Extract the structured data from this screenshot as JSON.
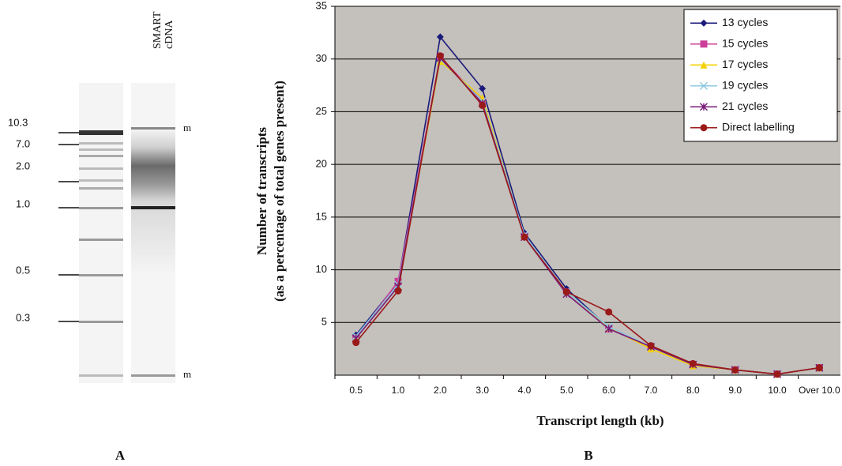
{
  "gel": {
    "lane_labels": [
      "SMART",
      "cDNA"
    ],
    "size_labels": [
      "10.3",
      "7.0",
      "2.0",
      "1.0",
      "0.5",
      "0.3"
    ],
    "marker_labels": [
      "m",
      "m"
    ]
  },
  "panel_labels": [
    "A",
    "B"
  ],
  "chart_data": {
    "type": "line",
    "xlabel": "Transcript length (kb)",
    "ylabel": [
      "Number of transcripts",
      "(as a percentage of total genes present)"
    ],
    "categories": [
      "0.5",
      "1.0",
      "2.0",
      "3.0",
      "4.0",
      "5.0",
      "6.0",
      "7.0",
      "8.0",
      "9.0",
      "10.0",
      "Over 10.0"
    ],
    "ylim": [
      0,
      35
    ],
    "yticks": [
      5,
      10,
      15,
      20,
      25,
      30,
      35
    ],
    "grid": true,
    "legend": "top-right",
    "series": [
      {
        "name": "13 cycles",
        "color": "#1a1a7a",
        "marker": "diamond",
        "values": [
          3.8,
          8.8,
          32.1,
          27.2,
          13.5,
          8.2,
          4.5,
          2.7,
          1.0,
          0.5,
          0.1,
          0.7
        ]
      },
      {
        "name": "15 cycles",
        "color": "#cc3f99",
        "marker": "square",
        "values": [
          3.5,
          8.9,
          30.2,
          26.0,
          13.2,
          7.9,
          4.4,
          2.7,
          1.0,
          0.5,
          0.1,
          0.7
        ]
      },
      {
        "name": "17 cycles",
        "color": "#f5d000",
        "marker": "triangle",
        "values": [
          3.6,
          8.5,
          29.8,
          26.3,
          13.2,
          7.9,
          4.5,
          2.5,
          0.9,
          0.5,
          0.1,
          0.7
        ]
      },
      {
        "name": "19 cycles",
        "color": "#8cc8e0",
        "marker": "x",
        "values": [
          3.7,
          8.6,
          30.0,
          26.0,
          13.3,
          7.9,
          4.6,
          2.7,
          1.0,
          0.5,
          0.1,
          0.7
        ]
      },
      {
        "name": "21 cycles",
        "color": "#7a1a7a",
        "marker": "star",
        "values": [
          3.5,
          8.4,
          30.1,
          25.8,
          13.1,
          7.7,
          4.4,
          2.7,
          1.0,
          0.5,
          0.1,
          0.7
        ]
      },
      {
        "name": "Direct labelling",
        "color": "#9a1a1a",
        "marker": "circle",
        "values": [
          3.1,
          8.0,
          30.3,
          25.6,
          13.1,
          7.9,
          6.0,
          2.8,
          1.1,
          0.5,
          0.1,
          0.7
        ]
      }
    ]
  }
}
